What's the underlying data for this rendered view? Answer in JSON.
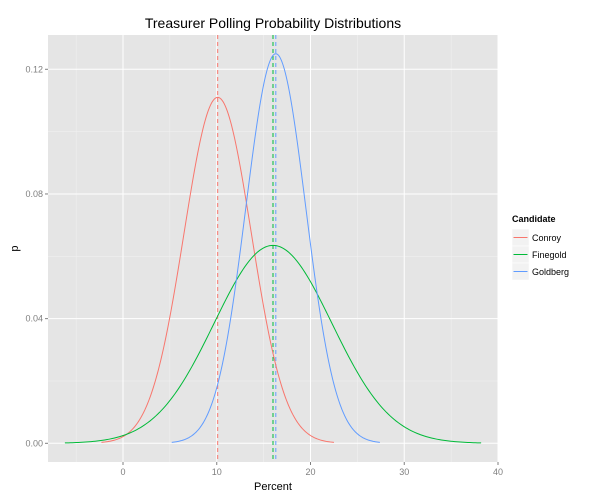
{
  "chart_data": {
    "type": "line",
    "title": "Treasurer Polling Probability Distributions",
    "xlabel": "Percent",
    "ylabel": "p",
    "xlim": [
      -8,
      40
    ],
    "ylim": [
      -0.006,
      0.131
    ],
    "x_ticks": [
      0,
      10,
      20,
      30,
      40
    ],
    "y_ticks": [
      0.0,
      0.04,
      0.08,
      0.12
    ],
    "x_tick_labels": [
      "0",
      "10",
      "20",
      "30",
      "40"
    ],
    "y_tick_labels": [
      "0.00",
      "0.04",
      "0.08",
      "0.12"
    ],
    "grid": true,
    "legend": {
      "title": "Candidate",
      "position": "right"
    },
    "series": [
      {
        "name": "Conroy",
        "color": "#F8766D",
        "mean": 10.1,
        "peak": 0.111,
        "x_range": [
          -2.3,
          22.5
        ],
        "dashed_mean_line": true
      },
      {
        "name": "Finegold",
        "color": "#00BA38",
        "mean": 16.0,
        "peak": 0.0635,
        "x_range": [
          -6.2,
          38.2
        ],
        "dashed_mean_line": true
      },
      {
        "name": "Goldberg",
        "color": "#619CFF",
        "mean": 16.3,
        "peak": 0.125,
        "x_range": [
          5.2,
          27.4
        ],
        "dashed_mean_line": true
      }
    ]
  }
}
